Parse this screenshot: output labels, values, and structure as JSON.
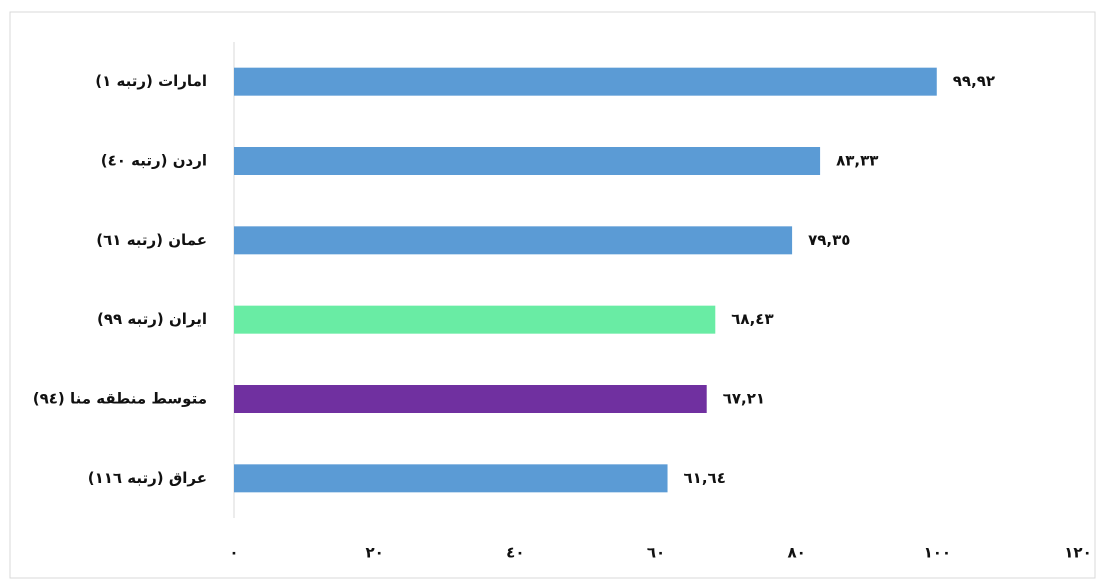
{
  "chart_data": {
    "type": "bar",
    "orientation": "horizontal",
    "categories": [
      "امارات (رتبه ١)",
      "اردن (رتبه ٤٠)",
      "عمان (رتبه ٦١)",
      "ایران (رتبه ٩٩)",
      "متوسط منطقه منا (٩٤)",
      "عراق (رتبه ١١٦)"
    ],
    "values": [
      99.92,
      83.33,
      79.35,
      68.43,
      67.21,
      61.64
    ],
    "value_labels": [
      "٩٩,٩٢",
      "٨٣,٣٣",
      "٧٩,٣٥",
      "٦٨,٤٣",
      "٦٧,٢١",
      "٦١,٦٤"
    ],
    "colors": [
      "#5b9bd5",
      "#5b9bd5",
      "#5b9bd5",
      "#69eca4",
      "#7030a0",
      "#5b9bd5"
    ],
    "xlim": [
      0,
      120
    ],
    "xticks": [
      {
        "value": 0,
        "label": "٠"
      },
      {
        "value": 20,
        "label": "٢٠"
      },
      {
        "value": 40,
        "label": "٤٠"
      },
      {
        "value": 60,
        "label": "٦٠"
      },
      {
        "value": 80,
        "label": "٨٠"
      },
      {
        "value": 100,
        "label": "١٠٠"
      },
      {
        "value": 120,
        "label": "١٢٠"
      }
    ],
    "grid": false
  }
}
